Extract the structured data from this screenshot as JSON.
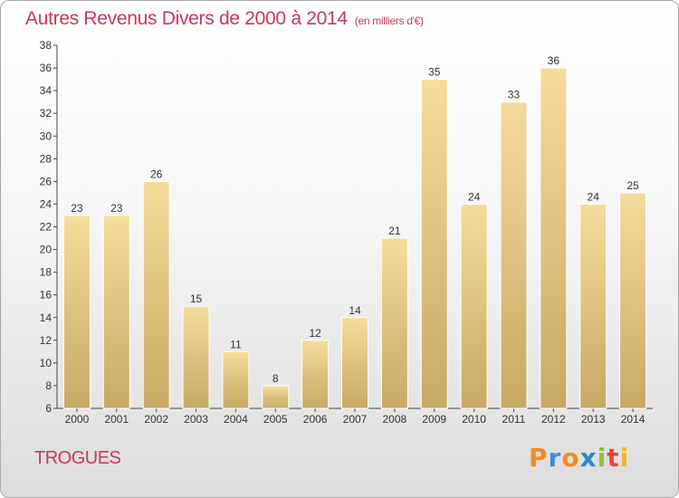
{
  "title": {
    "main": "Autres Revenus Divers de 2000 à 2014",
    "unit": "(en milliers d'€)"
  },
  "commune": "TROGUES",
  "logo": {
    "letters": [
      "P",
      "r",
      "o",
      "x",
      "i",
      "t",
      "i"
    ],
    "colors": [
      "#f08c1e",
      "#3a8fd1",
      "#f08c1e",
      "#2e86c8",
      "#8bc53f",
      "#e8463c",
      "#f0b81e"
    ]
  },
  "colors": {
    "bar_top": "#f6dc9c",
    "bar_bottom": "#c8a864",
    "title": "#c8385a"
  },
  "chart_data": {
    "type": "bar",
    "title": "Autres Revenus Divers de 2000 à 2014",
    "categories": [
      "2000",
      "2001",
      "2002",
      "2003",
      "2004",
      "2005",
      "2006",
      "2007",
      "2008",
      "2009",
      "2010",
      "2011",
      "2012",
      "2013",
      "2014"
    ],
    "values": [
      23,
      23,
      26,
      15,
      11,
      8,
      12,
      14,
      21,
      35,
      24,
      33,
      36,
      24,
      25
    ],
    "ylim": [
      6,
      38
    ],
    "yticks": [
      6,
      8,
      10,
      12,
      14,
      16,
      18,
      20,
      22,
      24,
      26,
      28,
      30,
      32,
      34,
      36,
      38
    ],
    "grid": false,
    "xlabel": "",
    "ylabel": ""
  }
}
